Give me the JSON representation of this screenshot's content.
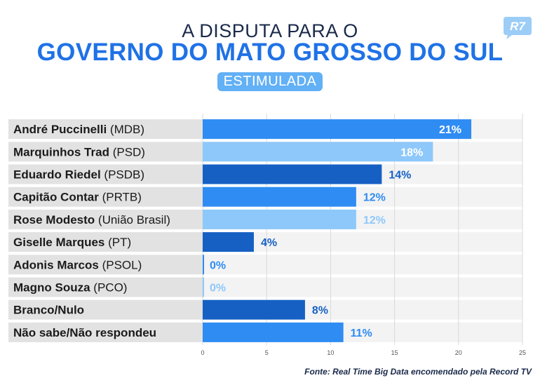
{
  "header": {
    "title_top": "A DISPUTA PARA O",
    "title_main": "GOVERNO DO MATO GROSSO DO SUL",
    "subtitle": "ESTIMULADA",
    "logo_text": "R7"
  },
  "colors": {
    "brand_blue": "#1f72e6",
    "light_blue": "#8ec8fa",
    "dark_blue": "#1660c4",
    "row_bg_dark": "#e2e2e2",
    "row_bg_light": "#f3f3f3"
  },
  "chart_data": {
    "type": "bar",
    "orientation": "horizontal",
    "categories": [
      {
        "name": "André Puccinelli",
        "party": "(MDB)"
      },
      {
        "name": "Marquinhos Trad",
        "party": "(PSD)"
      },
      {
        "name": "Eduardo Riedel",
        "party": "(PSDB)"
      },
      {
        "name": "Capitão Contar",
        "party": "(PRTB)"
      },
      {
        "name": "Rose Modesto",
        "party": "(União Brasil)"
      },
      {
        "name": "Giselle Marques",
        "party": "(PT)"
      },
      {
        "name": "Adonis Marcos",
        "party": "(PSOL)"
      },
      {
        "name": "Magno Souza",
        "party": "(PCO)"
      },
      {
        "name": "Branco/Nulo",
        "party": ""
      },
      {
        "name": "Não sabe/Não respondeu",
        "party": ""
      }
    ],
    "values": [
      21,
      18,
      14,
      12,
      12,
      4,
      0,
      0,
      8,
      11
    ],
    "value_labels": [
      "21%",
      "18%",
      "14%",
      "12%",
      "12%",
      "4%",
      "0%",
      "0%",
      "8%",
      "11%"
    ],
    "bar_colors": [
      "#2f8cf3",
      "#8ec8fa",
      "#1660c4",
      "#2f8cf3",
      "#8ec8fa",
      "#1660c4",
      "#2f8cf3",
      "#8ec8fa",
      "#1660c4",
      "#2f8cf3"
    ],
    "label_inside": [
      true,
      true,
      false,
      false,
      false,
      false,
      false,
      false,
      false,
      false
    ],
    "label_colors": [
      "#ffffff",
      "#ffffff",
      "#1660c4",
      "#2f8cf3",
      "#8ec8fa",
      "#1660c4",
      "#2f8cf3",
      "#8ec8fa",
      "#1660c4",
      "#2f8cf3"
    ],
    "xlim": [
      0,
      25
    ],
    "xticks": [
      0,
      5,
      10,
      15,
      20,
      25
    ],
    "grid": true,
    "source": "Fonte: Real Time Big Data encomendado pela Record TV"
  }
}
